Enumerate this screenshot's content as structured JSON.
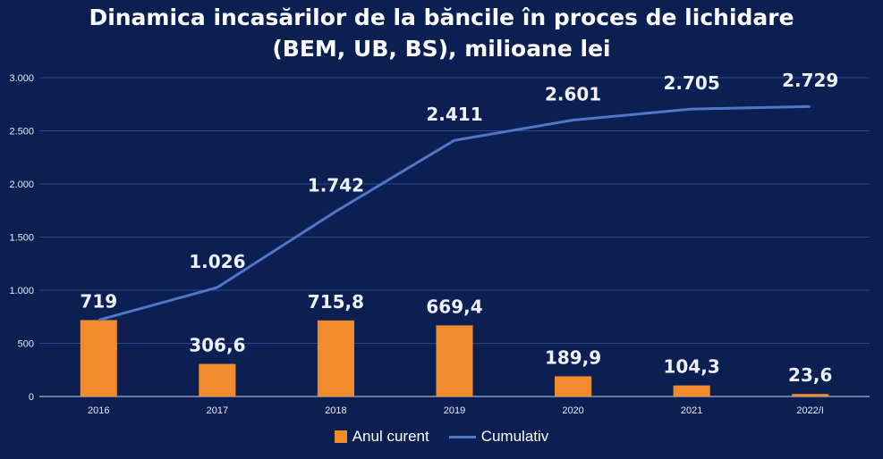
{
  "chart_data": {
    "type": "bar",
    "title_line1": "Dinamica incasărilor de la băncile în proces de lichidare",
    "title_line2": "(BEM, UB, BS), milioane lei",
    "categories": [
      "2016",
      "2017",
      "2018",
      "2019",
      "2020",
      "2021",
      "2022/I"
    ],
    "series": [
      {
        "name": "Anul curent",
        "kind": "bar",
        "color": "#f28a2e",
        "values": [
          719,
          306.6,
          715.8,
          669.4,
          189.9,
          104.3,
          23.6
        ],
        "labels": [
          "719",
          "306,6",
          "715,8",
          "669,4",
          "189,9",
          "104,3",
          "23,6"
        ]
      },
      {
        "name": "Cumulativ",
        "kind": "line",
        "color": "#4f77c9",
        "values": [
          719,
          1026,
          1742,
          2411,
          2601,
          2705,
          2729
        ],
        "labels": [
          "",
          "1.026",
          "1.742",
          "2.411",
          "2.601",
          "2.705",
          "2.729"
        ]
      }
    ],
    "yticks": [
      0,
      500,
      1000,
      1500,
      2000,
      2500,
      3000
    ],
    "ytick_labels": [
      "0",
      "500",
      "1.000",
      "1.500",
      "2.000",
      "2.500",
      "3.000"
    ],
    "ylim": [
      0,
      3000
    ],
    "grid": true,
    "legend": "bottom",
    "xlabel": "",
    "ylabel": ""
  }
}
